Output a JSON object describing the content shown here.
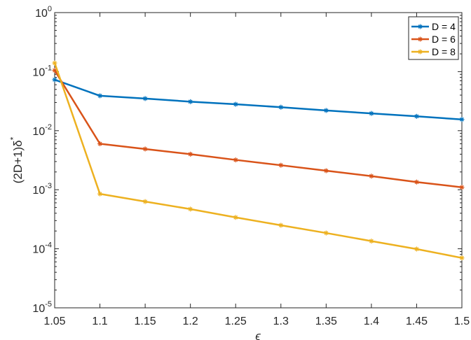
{
  "chart_data": {
    "type": "line",
    "xlabel": "ϵ",
    "ylabel": "(2D+1)δ",
    "ylabel_sup": "*",
    "yscale": "log",
    "xlim": [
      1.05,
      1.5
    ],
    "ylim": [
      1e-05,
      1
    ],
    "grid": false,
    "legend_position": "top-right",
    "x": [
      1.05,
      1.1,
      1.15,
      1.2,
      1.25,
      1.3,
      1.35,
      1.4,
      1.45,
      1.5
    ],
    "x_tick_labels": [
      "1.05",
      "1.1",
      "1.15",
      "1.2",
      "1.25",
      "1.3",
      "1.35",
      "1.4",
      "1.45",
      "1.5"
    ],
    "y_ticks": [
      {
        "value": 1,
        "base": "10",
        "exp": "0"
      },
      {
        "value": 0.1,
        "base": "10",
        "exp": "-1"
      },
      {
        "value": 0.01,
        "base": "10",
        "exp": "-2"
      },
      {
        "value": 0.001,
        "base": "10",
        "exp": "-3"
      },
      {
        "value": 0.0001,
        "base": "10",
        "exp": "-4"
      },
      {
        "value": 1e-05,
        "base": "10",
        "exp": "-5"
      }
    ],
    "series": [
      {
        "name": "D = 4",
        "color": "#0072BD",
        "values": [
          0.073,
          0.039,
          0.035,
          0.031,
          0.028,
          0.025,
          0.022,
          0.0196,
          0.0175,
          0.0155
        ]
      },
      {
        "name": "D = 6",
        "color": "#D95319",
        "values": [
          0.105,
          0.006,
          0.0049,
          0.004,
          0.0032,
          0.0026,
          0.0021,
          0.0017,
          0.00135,
          0.0011
        ]
      },
      {
        "name": "D = 8",
        "color": "#EDB120",
        "values": [
          0.14,
          0.00085,
          0.00063,
          0.00047,
          0.00034,
          0.00025,
          0.000185,
          0.000135,
          9.9e-05,
          7e-05
        ]
      }
    ]
  }
}
